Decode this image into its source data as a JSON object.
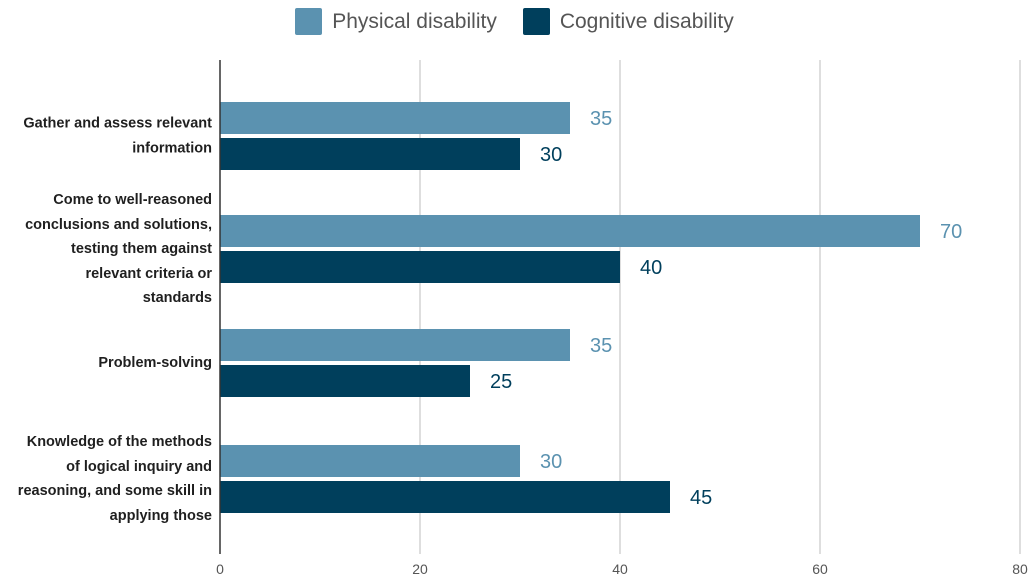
{
  "chart_data": {
    "type": "bar",
    "orientation": "horizontal",
    "categories": [
      "Gather and assess relevant information",
      "Come to well-reasoned conclusions and solutions, testing them against relevant criteria or standards",
      "Problem-solving",
      "Knowledge of the methods of logical inquiry and reasoning, and some skill in applying those"
    ],
    "category_lines": [
      [
        "Gather and assess relevant",
        "information"
      ],
      [
        "Come to well-reasoned",
        "conclusions and solutions,",
        "testing them against",
        "relevant criteria or",
        "standards"
      ],
      [
        "Problem-solving"
      ],
      [
        "Knowledge of the methods",
        "of logical inquiry and",
        "reasoning, and some skill in",
        "applying those"
      ]
    ],
    "series": [
      {
        "name": "Physical disability",
        "values": [
          35,
          70,
          35,
          30
        ],
        "color": "#5b92b0"
      },
      {
        "name": "Cognitive disability",
        "values": [
          30,
          40,
          25,
          45
        ],
        "color": "#003f5c"
      }
    ],
    "xlim": [
      0,
      80
    ],
    "xticks": [
      0,
      20,
      40,
      60,
      80
    ],
    "grid": true,
    "legend_position": "top-center",
    "data_labels": true
  }
}
